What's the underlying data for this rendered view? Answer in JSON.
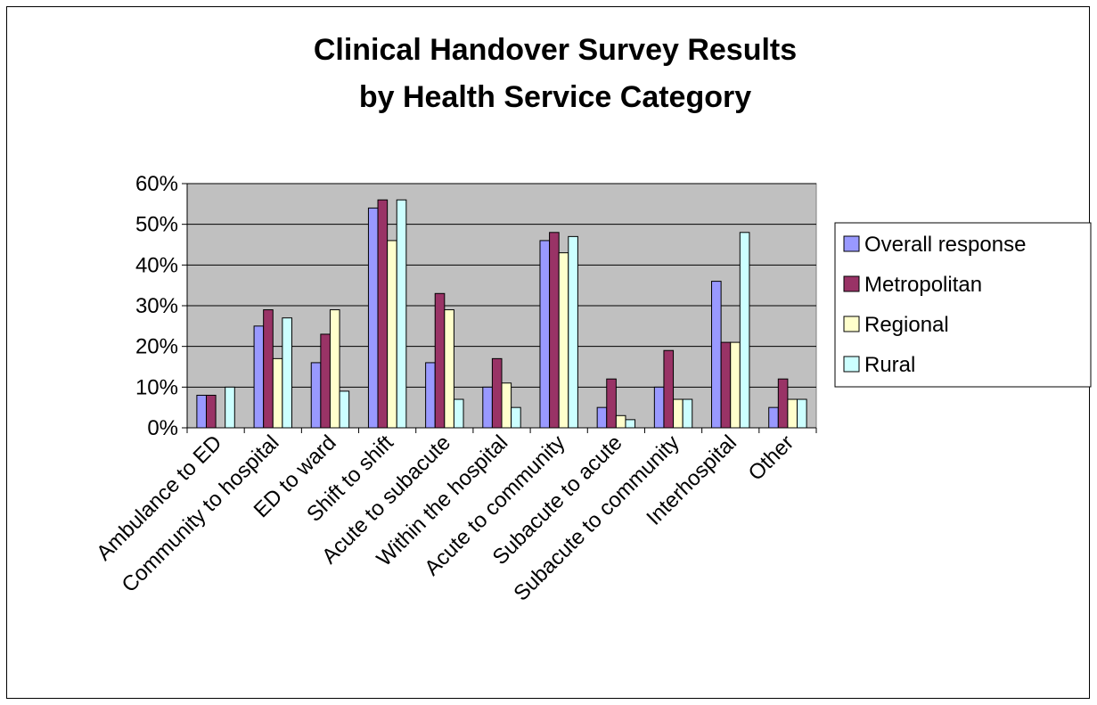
{
  "chart_data": {
    "type": "bar",
    "title_lines": [
      "Clinical Handover Survey Results",
      "by Health Service Category"
    ],
    "xlabel": "",
    "ylabel": "",
    "ylim": [
      0,
      60
    ],
    "yticks": [
      "0%",
      "10%",
      "20%",
      "30%",
      "40%",
      "50%",
      "60%"
    ],
    "grid": true,
    "legend_position": "right",
    "categories": [
      "Ambulance to ED",
      "Community to hospital",
      "ED to ward",
      "Shift to shift",
      "Acute to subacute",
      "Within the hospital",
      "Acute to community",
      "Subacute to acute",
      "Subacute to community",
      "Interhospital",
      "Other"
    ],
    "series": [
      {
        "name": "Overall response",
        "color": "#9999ff",
        "values": [
          8,
          25,
          16,
          54,
          16,
          10,
          46,
          5,
          10,
          36,
          5
        ]
      },
      {
        "name": "Metropolitan",
        "color": "#993366",
        "values": [
          8,
          29,
          23,
          56,
          33,
          17,
          48,
          12,
          19,
          21,
          12
        ]
      },
      {
        "name": "Regional",
        "color": "#ffffcc",
        "values": [
          0,
          17,
          29,
          46,
          29,
          11,
          43,
          3,
          7,
          21,
          7
        ]
      },
      {
        "name": "Rural",
        "color": "#ccffff",
        "values": [
          10,
          27,
          9,
          56,
          7,
          5,
          47,
          2,
          7,
          48,
          7
        ]
      }
    ],
    "plot_background": "#c0c0c0"
  }
}
